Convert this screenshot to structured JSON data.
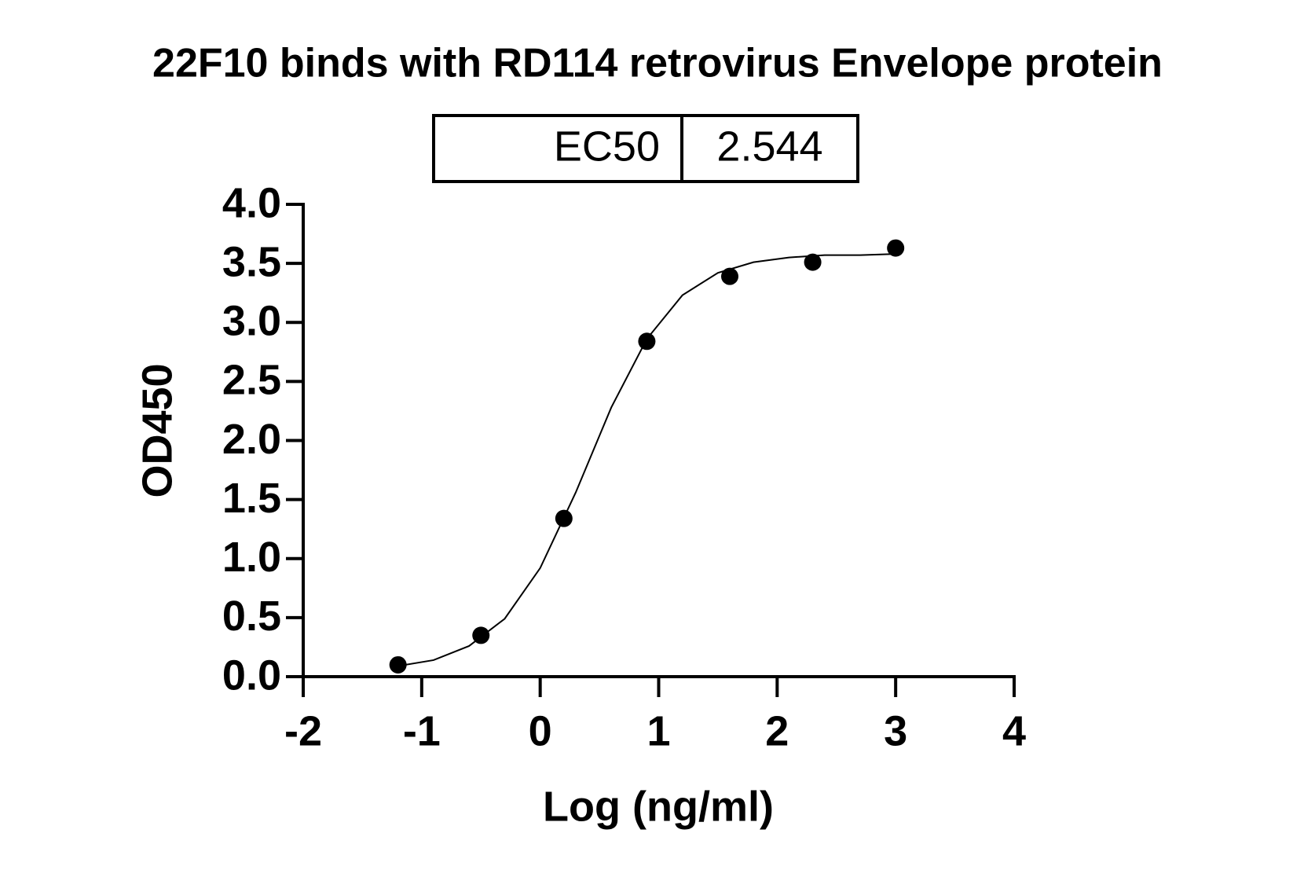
{
  "chart_data": {
    "type": "scatter",
    "title": "22F10 binds with RD114 retrovirus Envelope protein",
    "ec50_label": "EC50",
    "ec50_value": 2.544,
    "x_label": "Log (ng/ml)",
    "y_label": "OD450",
    "x": [
      -1.2,
      -0.5,
      0.2,
      0.9,
      1.6,
      2.3,
      3.0
    ],
    "values": [
      0.1,
      0.35,
      1.34,
      2.84,
      3.39,
      3.51,
      3.63
    ],
    "color": "#000000",
    "fit_curve": {
      "x": [
        -1.2,
        -0.9,
        -0.6,
        -0.3,
        0,
        0.3,
        0.6,
        0.9,
        1.2,
        1.5,
        1.8,
        2.1,
        2.4,
        2.7,
        3.0
      ],
      "values": [
        0.09,
        0.14,
        0.26,
        0.49,
        0.92,
        1.56,
        2.28,
        2.86,
        3.23,
        3.42,
        3.51,
        3.55,
        3.57,
        3.57,
        3.58
      ]
    },
    "xlim": [
      -2,
      4
    ],
    "ylim": [
      0,
      4
    ],
    "xticks": [
      -2,
      -1,
      0,
      1,
      2,
      3,
      4
    ],
    "yticks": [
      {
        "value": 0,
        "label": "0.0"
      },
      {
        "value": 0.5,
        "label": "0.5"
      },
      {
        "value": 1,
        "label": "1.0"
      },
      {
        "value": 1.5,
        "label": "1.5"
      },
      {
        "value": 2,
        "label": "2.0"
      },
      {
        "value": 2.5,
        "label": "2.5"
      },
      {
        "value": 3,
        "label": "3.0"
      },
      {
        "value": 3.5,
        "label": "3.5"
      },
      {
        "value": 4,
        "label": "4.0"
      }
    ]
  }
}
